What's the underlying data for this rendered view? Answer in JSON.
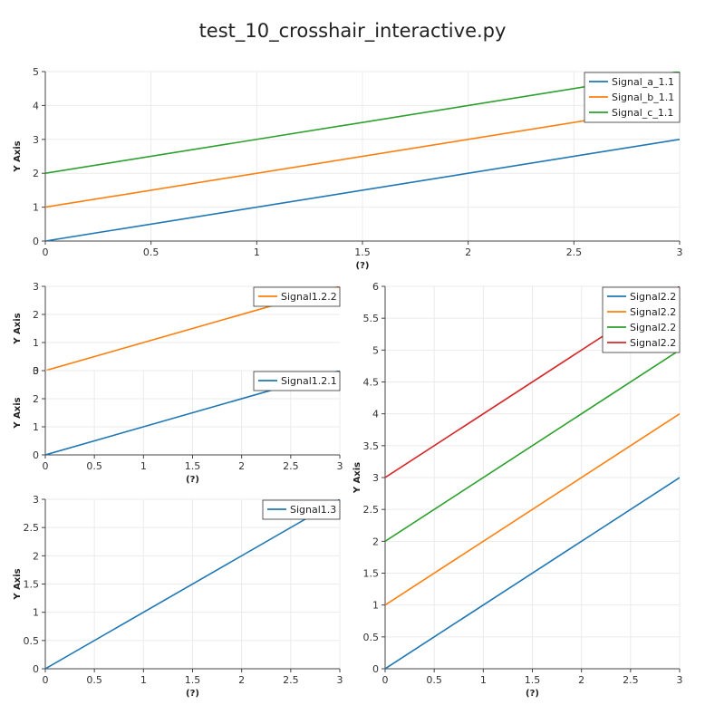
{
  "page": {
    "title": "test_10_crosshair_interactive.py"
  },
  "colors": {
    "blue": "#1f77b4",
    "orange": "#ff7f0e",
    "green": "#2ca02c",
    "red": "#d62728"
  },
  "chart_data": [
    {
      "id": "plot-1-1",
      "type": "line",
      "xlabel": "(?)",
      "ylabel": "Y Axis",
      "xlim": [
        0,
        3
      ],
      "ylim": [
        0,
        5
      ],
      "xticks": [
        "0",
        "0.5",
        "1",
        "1.5",
        "2",
        "2.5",
        "3"
      ],
      "yticks": [
        "0",
        "1",
        "2",
        "3",
        "4",
        "5"
      ],
      "legend": "top-right",
      "series": [
        {
          "name": "Signal_a_1.1",
          "color": "#1f77b4",
          "x": [
            0,
            3
          ],
          "y": [
            0,
            3
          ]
        },
        {
          "name": "Signal_b_1.1",
          "color": "#ff7f0e",
          "x": [
            0,
            3
          ],
          "y": [
            1,
            4
          ]
        },
        {
          "name": "Signal_c_1.1",
          "color": "#2ca02c",
          "x": [
            0,
            3
          ],
          "y": [
            2,
            5
          ]
        }
      ]
    },
    {
      "id": "plot-1-2-2",
      "type": "line",
      "xlabel": "",
      "ylabel": "Y Axis",
      "xlim": [
        0,
        3
      ],
      "ylim": [
        0,
        3
      ],
      "xticks": [],
      "yticks": [
        "0",
        "1",
        "2",
        "3"
      ],
      "legend": "top-right",
      "series": [
        {
          "name": "Signal1.2.2",
          "color": "#ff7f0e",
          "x": [
            0,
            3
          ],
          "y": [
            0,
            3
          ]
        }
      ]
    },
    {
      "id": "plot-1-2-1",
      "type": "line",
      "xlabel": "(?)",
      "ylabel": "Y Axis",
      "xlim": [
        0,
        3
      ],
      "ylim": [
        0,
        3
      ],
      "xticks": [
        "0",
        "0.5",
        "1",
        "1.5",
        "2",
        "2.5",
        "3"
      ],
      "yticks": [
        "0",
        "1",
        "2",
        "3"
      ],
      "legend": "top-right",
      "series": [
        {
          "name": "Signal1.2.1",
          "color": "#1f77b4",
          "x": [
            0,
            3
          ],
          "y": [
            0,
            3
          ]
        }
      ]
    },
    {
      "id": "plot-1-3",
      "type": "line",
      "xlabel": "(?)",
      "ylabel": "Y Axis",
      "xlim": [
        0,
        3
      ],
      "ylim": [
        0,
        3
      ],
      "xticks": [
        "0",
        "0.5",
        "1",
        "1.5",
        "2",
        "2.5",
        "3"
      ],
      "yticks": [
        "0",
        "0.5",
        "1",
        "1.5",
        "2",
        "2.5",
        "3"
      ],
      "legend": "top-right",
      "series": [
        {
          "name": "Signal1.3",
          "color": "#1f77b4",
          "x": [
            0,
            3
          ],
          "y": [
            0,
            3
          ]
        }
      ]
    },
    {
      "id": "plot-2-2",
      "type": "line",
      "xlabel": "(?)",
      "ylabel": "Y Axis",
      "xlim": [
        0,
        3
      ],
      "ylim": [
        0,
        6
      ],
      "xticks": [
        "0",
        "0.5",
        "1",
        "1.5",
        "2",
        "2.5",
        "3"
      ],
      "yticks": [
        "0",
        "0.5",
        "1",
        "1.5",
        "2",
        "2.5",
        "3",
        "3.5",
        "4",
        "4.5",
        "5",
        "5.5",
        "6"
      ],
      "legend": "top-right",
      "series": [
        {
          "name": "Signal2.2",
          "color": "#1f77b4",
          "x": [
            0,
            3
          ],
          "y": [
            0,
            3
          ]
        },
        {
          "name": "Signal2.2",
          "color": "#ff7f0e",
          "x": [
            0,
            3
          ],
          "y": [
            1,
            4
          ]
        },
        {
          "name": "Signal2.2",
          "color": "#2ca02c",
          "x": [
            0,
            3
          ],
          "y": [
            2,
            5
          ]
        },
        {
          "name": "Signal2.2",
          "color": "#d62728",
          "x": [
            0,
            3
          ],
          "y": [
            3,
            6
          ]
        }
      ]
    }
  ]
}
